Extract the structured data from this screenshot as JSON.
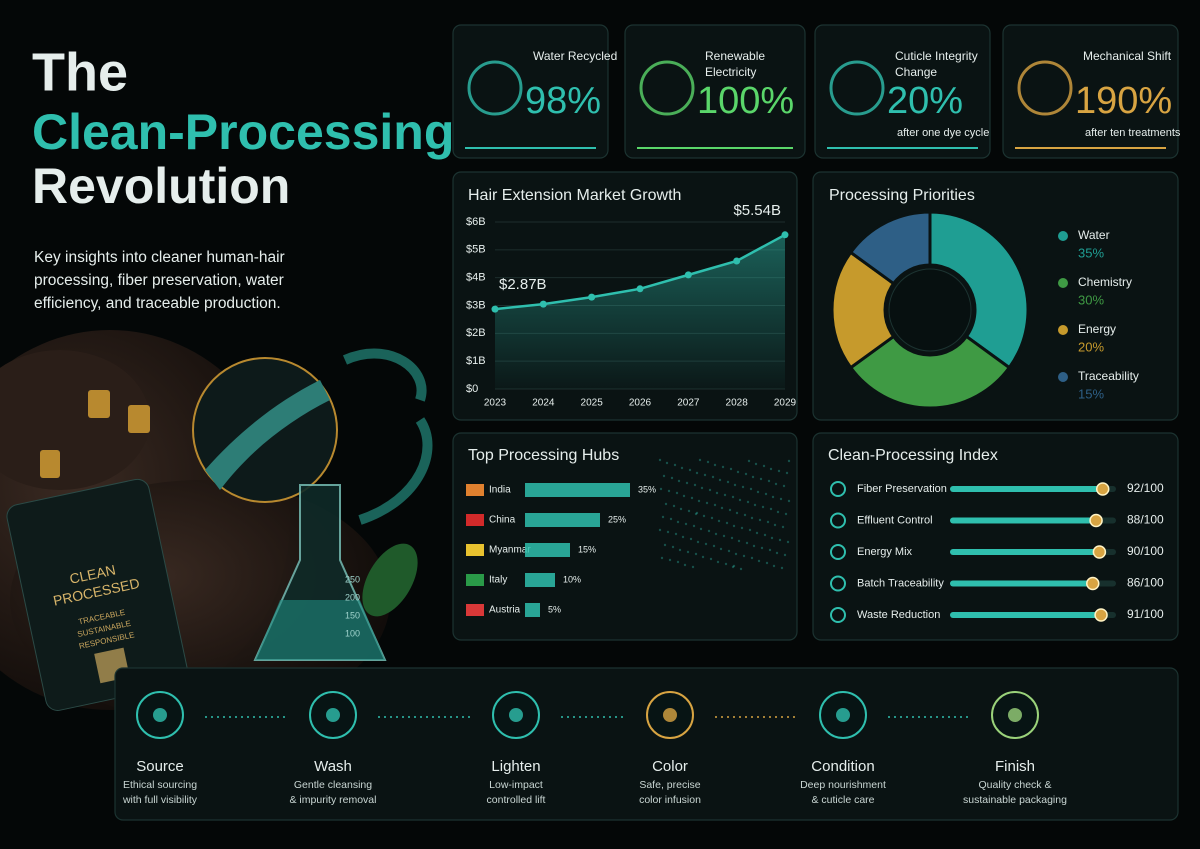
{
  "header": {
    "title": [
      "The",
      "Clean-Processing",
      "Revolution"
    ],
    "subtitle": [
      "Key insights into cleaner human-hair",
      "processing, fiber preservation, water",
      "efficiency, and traceable production."
    ]
  },
  "kpis": [
    {
      "label": [
        "Water Recycled"
      ],
      "value": "98%",
      "color": "#2fbfae"
    },
    {
      "label": [
        "Renewable",
        "Electricity"
      ],
      "value": "100%",
      "color": "#5ad66a"
    },
    {
      "label": [
        "Cuticle Integrity",
        "Change"
      ],
      "value": "20%",
      "note": "after one dye cycle",
      "color": "#2fbfae"
    },
    {
      "label": [
        "Mechanical Shift"
      ],
      "value": "190%",
      "note": "after ten treatments",
      "color": "#d8a442"
    }
  ],
  "chart_data": [
    {
      "type": "line",
      "title": "Hair Extension Market Growth",
      "x": [
        2023,
        2024,
        2025,
        2026,
        2027,
        2028,
        2029
      ],
      "values": [
        2.87,
        3.05,
        3.3,
        3.6,
        4.1,
        4.6,
        5.54
      ],
      "value_labels": [
        "$2.87B",
        null,
        null,
        null,
        null,
        null,
        "$5.54B"
      ],
      "xlim": [
        2023,
        2029
      ],
      "xticks": [
        2023,
        2024,
        2025,
        2026,
        2027,
        2028,
        2029
      ],
      "ylim": [
        0,
        6
      ],
      "yticks": [
        {
          "value": 0,
          "label": "$0"
        },
        {
          "value": 1,
          "label": "$1B"
        },
        {
          "value": 2,
          "label": "$2B"
        },
        {
          "value": 3,
          "label": "$3B"
        },
        {
          "value": 4,
          "label": "$4B"
        },
        {
          "value": 5,
          "label": "$5B"
        },
        {
          "value": 6,
          "label": "$6B"
        }
      ],
      "color": "#2fbfae"
    },
    {
      "type": "pie",
      "title": "Processing Priorities",
      "categories": [
        "Water",
        "Chemistry",
        "Energy",
        "Traceability"
      ],
      "values": [
        35,
        30,
        20,
        15
      ],
      "value_labels": [
        "35%",
        "30%",
        "20%",
        "15%"
      ],
      "colors": [
        "#1f9e93",
        "#3f9a44",
        "#c69a2c",
        "#2e5f86"
      ]
    },
    {
      "type": "hbar",
      "title": "Top Processing Hubs",
      "categories": [
        "India",
        "China",
        "Myanmar",
        "Italy",
        "Austria"
      ],
      "values": [
        35,
        25,
        15,
        10,
        5
      ],
      "value_labels": [
        "35%",
        "25%",
        "15%",
        "10%",
        "5%"
      ],
      "color": "#2fbfae"
    },
    {
      "type": "index",
      "title": "Clean-Processing Index",
      "categories": [
        "Fiber Preservation",
        "Effluent Control",
        "Energy Mix",
        "Batch Traceability",
        "Waste Reduction"
      ],
      "values": [
        92,
        88,
        90,
        86,
        91
      ],
      "value_labels": [
        "92/100",
        "88/100",
        "90/100",
        "86/100",
        "91/100"
      ],
      "xlim": [
        0,
        100
      ],
      "color": "#2fbfae"
    }
  ],
  "steps": [
    {
      "title": "Source",
      "desc": [
        "Ethical sourcing",
        "with full visibility"
      ],
      "color": "#2fbfae"
    },
    {
      "title": "Wash",
      "desc": [
        "Gentle cleansing",
        "& impurity removal"
      ],
      "color": "#2fbfae"
    },
    {
      "title": "Lighten",
      "desc": [
        "Low-impact",
        "controlled lift"
      ],
      "color": "#2fbfae"
    },
    {
      "title": "Color",
      "desc": [
        "Safe, precise",
        "color infusion"
      ],
      "color": "#d8a442"
    },
    {
      "title": "Condition",
      "desc": [
        "Deep nourishment",
        "& cuticle care"
      ],
      "color": "#2fbfae"
    },
    {
      "title": "Finish",
      "desc": [
        "Quality check &",
        "sustainable packaging"
      ],
      "color": "#9ad27a"
    }
  ],
  "tag": {
    "title": [
      "CLEAN",
      "PROCESSED"
    ],
    "lines": [
      "TRACEABLE",
      "SUSTAINABLE",
      "RESPONSIBLE"
    ]
  },
  "beaker_marks": [
    "250",
    "200",
    "150",
    "100"
  ]
}
